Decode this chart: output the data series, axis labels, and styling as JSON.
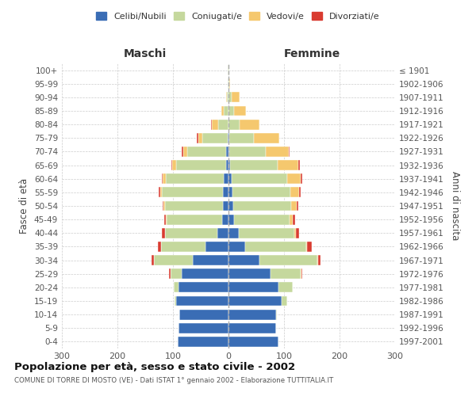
{
  "age_groups": [
    "0-4",
    "5-9",
    "10-14",
    "15-19",
    "20-24",
    "25-29",
    "30-34",
    "35-39",
    "40-44",
    "45-49",
    "50-54",
    "55-59",
    "60-64",
    "65-69",
    "70-74",
    "75-79",
    "80-84",
    "85-89",
    "90-94",
    "95-99",
    "100+"
  ],
  "birth_years": [
    "1997-2001",
    "1992-1996",
    "1987-1991",
    "1982-1986",
    "1977-1981",
    "1972-1976",
    "1967-1971",
    "1962-1966",
    "1957-1961",
    "1952-1956",
    "1947-1951",
    "1942-1946",
    "1937-1941",
    "1932-1936",
    "1927-1931",
    "1922-1926",
    "1917-1921",
    "1912-1916",
    "1907-1911",
    "1902-1906",
    "≤ 1901"
  ],
  "males": {
    "celibi": [
      92,
      90,
      88,
      95,
      90,
      85,
      65,
      42,
      20,
      12,
      10,
      10,
      8,
      5,
      4,
      2,
      0,
      0,
      0,
      0,
      0
    ],
    "coniugati": [
      0,
      0,
      0,
      2,
      8,
      20,
      70,
      80,
      95,
      100,
      105,
      110,
      105,
      90,
      70,
      45,
      18,
      8,
      3,
      1,
      1
    ],
    "vedovi": [
      0,
      0,
      0,
      0,
      0,
      0,
      0,
      0,
      0,
      1,
      2,
      3,
      5,
      6,
      8,
      8,
      12,
      5,
      2,
      0,
      0
    ],
    "divorziati": [
      0,
      0,
      0,
      0,
      1,
      2,
      3,
      5,
      5,
      3,
      2,
      3,
      2,
      2,
      2,
      2,
      1,
      0,
      0,
      0,
      0
    ]
  },
  "females": {
    "nubili": [
      90,
      85,
      85,
      95,
      90,
      75,
      55,
      30,
      18,
      10,
      8,
      7,
      5,
      3,
      2,
      1,
      0,
      0,
      0,
      0,
      0
    ],
    "coniugate": [
      0,
      0,
      2,
      10,
      25,
      55,
      105,
      110,
      100,
      100,
      105,
      105,
      100,
      85,
      65,
      45,
      20,
      10,
      5,
      1,
      1
    ],
    "vedove": [
      0,
      0,
      0,
      0,
      0,
      1,
      1,
      2,
      4,
      6,
      10,
      15,
      25,
      38,
      42,
      45,
      35,
      22,
      15,
      2,
      0
    ],
    "divorziate": [
      0,
      0,
      0,
      0,
      1,
      2,
      5,
      8,
      5,
      4,
      3,
      3,
      3,
      2,
      1,
      1,
      1,
      0,
      0,
      0,
      0
    ]
  },
  "colors": {
    "celibi": "#3a6db5",
    "coniugati": "#c5d89d",
    "vedovi": "#f5c86e",
    "divorziati": "#d93b30"
  },
  "title": "Popolazione per età, sesso e stato civile - 2002",
  "subtitle": "COMUNE DI TORRE DI MOSTO (VE) - Dati ISTAT 1° gennaio 2002 - Elaborazione TUTTITALIA.IT",
  "xlabel_left": "Maschi",
  "xlabel_right": "Femmine",
  "ylabel_left": "Fasce di età",
  "ylabel_right": "Anni di nascita",
  "xlim": 300,
  "legend_labels": [
    "Celibi/Nubili",
    "Coniugati/e",
    "Vedovi/e",
    "Divorziati/e"
  ],
  "bg_color": "#ffffff",
  "grid_color": "#cccccc"
}
